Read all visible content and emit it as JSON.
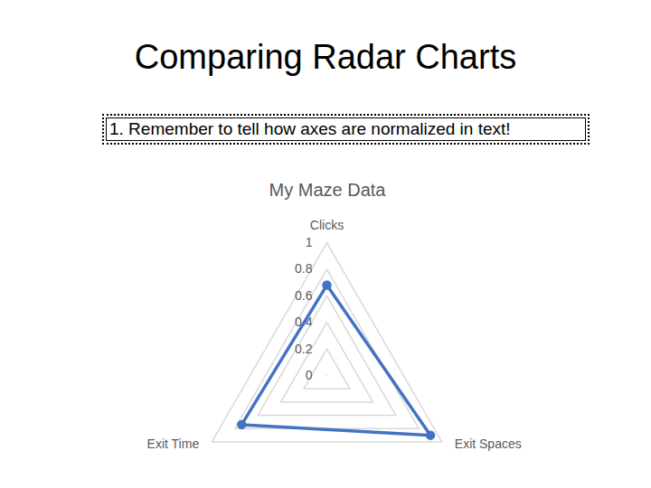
{
  "slide": {
    "title": "Comparing Radar Charts",
    "note": "1. Remember to tell how axes are normalized in text!"
  },
  "chart_data": {
    "type": "radar",
    "title": "My Maze Data",
    "categories": [
      "Clicks",
      "Exit Spaces",
      "Exit Time"
    ],
    "values": [
      0.68,
      0.9,
      0.74
    ],
    "color": "#4472c4",
    "marker": "circle",
    "ylim": [
      0,
      1
    ],
    "yticks": [
      0,
      0.2,
      0.4,
      0.6,
      0.8,
      1
    ],
    "grid": true
  }
}
